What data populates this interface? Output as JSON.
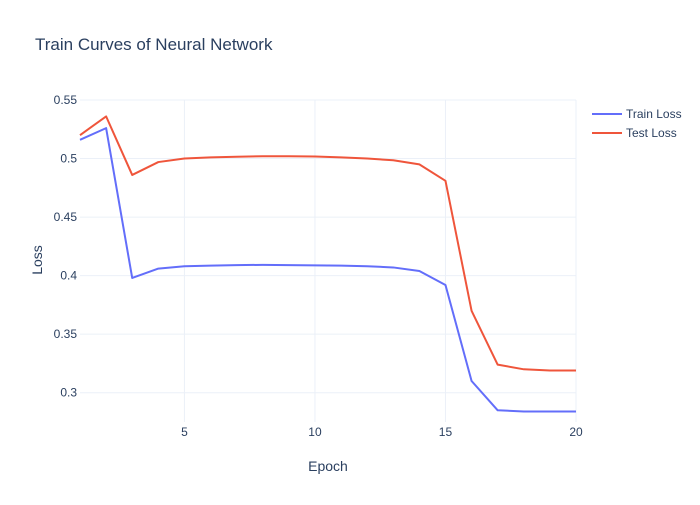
{
  "chart_data": {
    "type": "line",
    "title": "Train Curves of Neural Network",
    "xlabel": "Epoch",
    "ylabel": "Loss",
    "xlim": [
      1,
      20
    ],
    "ylim": [
      0.275,
      0.55
    ],
    "x_ticks": [
      5,
      10,
      15,
      20
    ],
    "y_ticks": [
      0.3,
      0.35,
      0.4,
      0.45,
      0.5,
      0.55
    ],
    "x_tick_labels": [
      "5",
      "10",
      "15",
      "20"
    ],
    "y_tick_labels": [
      "0.3",
      "0.35",
      "0.4",
      "0.45",
      "0.5",
      "0.55"
    ],
    "grid": true,
    "legend_position": "top-right",
    "x": [
      1,
      2,
      3,
      4,
      5,
      6,
      7,
      8,
      9,
      10,
      11,
      12,
      13,
      14,
      15,
      16,
      17,
      18,
      19,
      20
    ],
    "series": [
      {
        "name": "Train Loss",
        "color": "#636efa",
        "values": [
          0.516,
          0.526,
          0.398,
          0.406,
          0.408,
          0.4085,
          0.409,
          0.4092,
          0.409,
          0.4088,
          0.4085,
          0.408,
          0.407,
          0.404,
          0.392,
          0.31,
          0.285,
          0.284,
          0.284,
          0.284
        ]
      },
      {
        "name": "Test Loss",
        "color": "#ef553b",
        "values": [
          0.52,
          0.536,
          0.486,
          0.497,
          0.5,
          0.501,
          0.5015,
          0.502,
          0.502,
          0.5018,
          0.501,
          0.5,
          0.4985,
          0.495,
          0.481,
          0.37,
          0.324,
          0.32,
          0.319,
          0.319
        ]
      }
    ]
  }
}
